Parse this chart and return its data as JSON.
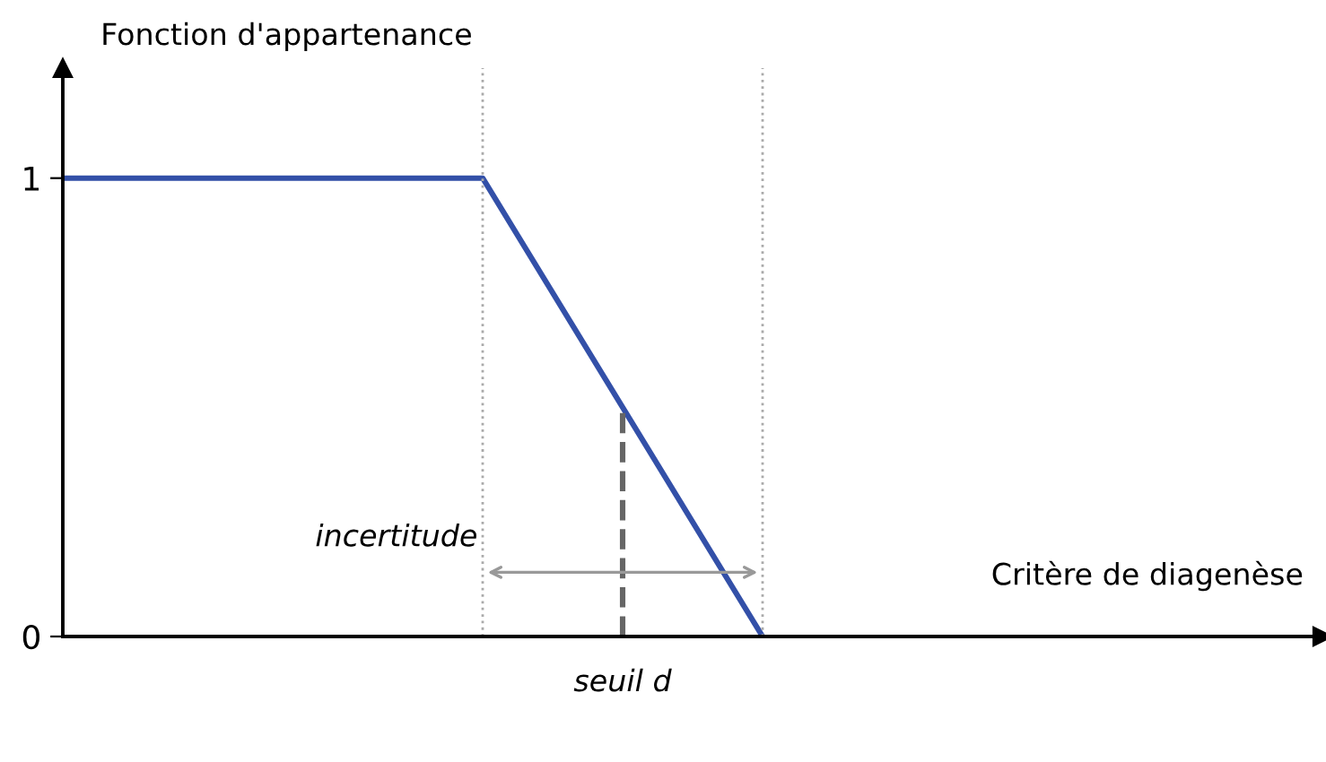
{
  "chart_data": {
    "type": "line",
    "xlabel": "Critère de diagenèse",
    "ylabel": "Fonction d'appartenance",
    "categories": [
      null,
      null,
      null,
      null,
      null,
      null,
      null,
      null,
      null,
      null
    ],
    "series": [
      {
        "color": "#3350a8",
        "values": [
          1,
          1,
          1,
          1,
          0.5,
          0,
          null,
          null,
          null,
          null
        ]
      }
    ],
    "ylim": [
      0,
      1.24
    ],
    "yticks": [
      0,
      1
    ],
    "grid": false,
    "legend": false,
    "marker": "none",
    "line_style": "solid",
    "tick_labels": "y",
    "annotations": [
      "incertitude",
      "seuil d"
    ]
  }
}
